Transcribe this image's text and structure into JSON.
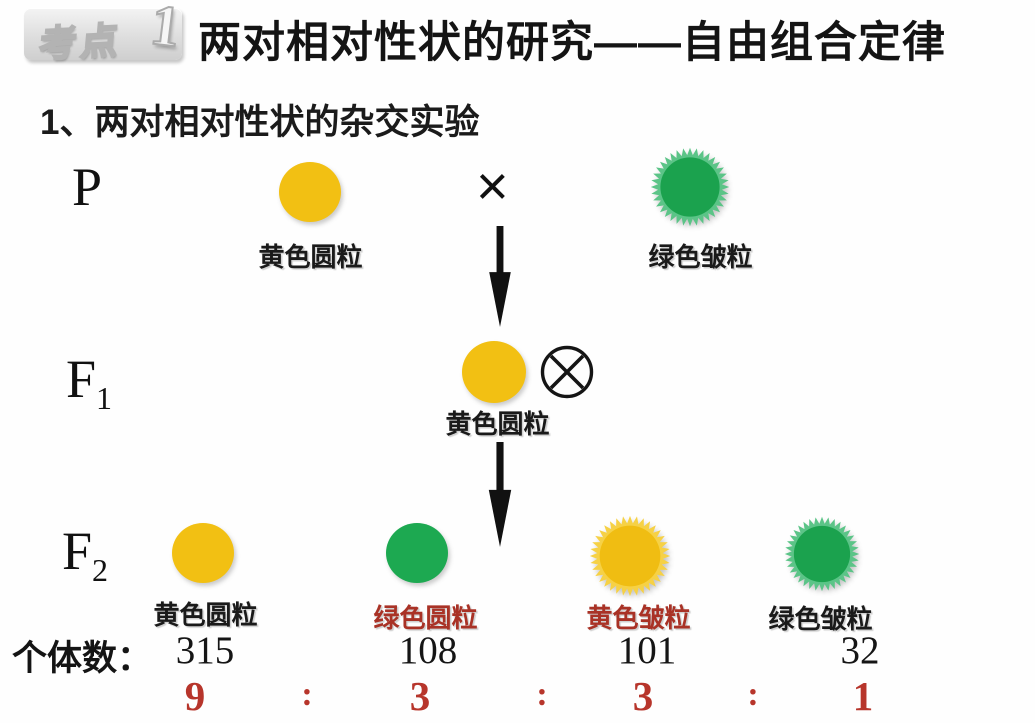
{
  "colors": {
    "seed_yellow": "#F2C013",
    "seed_green": "#1DA951",
    "label_red": "#A93226",
    "ratio_red": "#B7352B",
    "text_black": "#1A1A1A",
    "badge_gray": "#D8D8D8"
  },
  "header": {
    "badge_text": "考点",
    "badge_number": "1",
    "title": "两对相对性状的研究——自由组合定律"
  },
  "subtitle": "1、两对相对性状的杂交实验",
  "p_generation": {
    "label": "P",
    "left_seed_label": "黄色圆粒",
    "cross_symbol": "×",
    "right_seed_label": "绿色皱粒"
  },
  "f1_generation": {
    "label": "F",
    "subscript": "1",
    "seed_label": "黄色圆粒",
    "self_cross_symbol": "⊗"
  },
  "f2_generation": {
    "label": "F",
    "subscript": "2",
    "seeds": [
      {
        "phenotype": "yellow-round",
        "label": "黄色圆粒",
        "count": "315",
        "ratio": "9"
      },
      {
        "phenotype": "green-round",
        "label": "绿色圆粒",
        "count": "108",
        "ratio": "3"
      },
      {
        "phenotype": "yellow-wrinkled",
        "label": "黄色皱粒",
        "count": "101",
        "ratio": "3"
      },
      {
        "phenotype": "green-wrinkled",
        "label": "绿色皱粒",
        "count": "32",
        "ratio": "1"
      }
    ]
  },
  "counts_label": "个体数：",
  "ratio_separator": ":"
}
